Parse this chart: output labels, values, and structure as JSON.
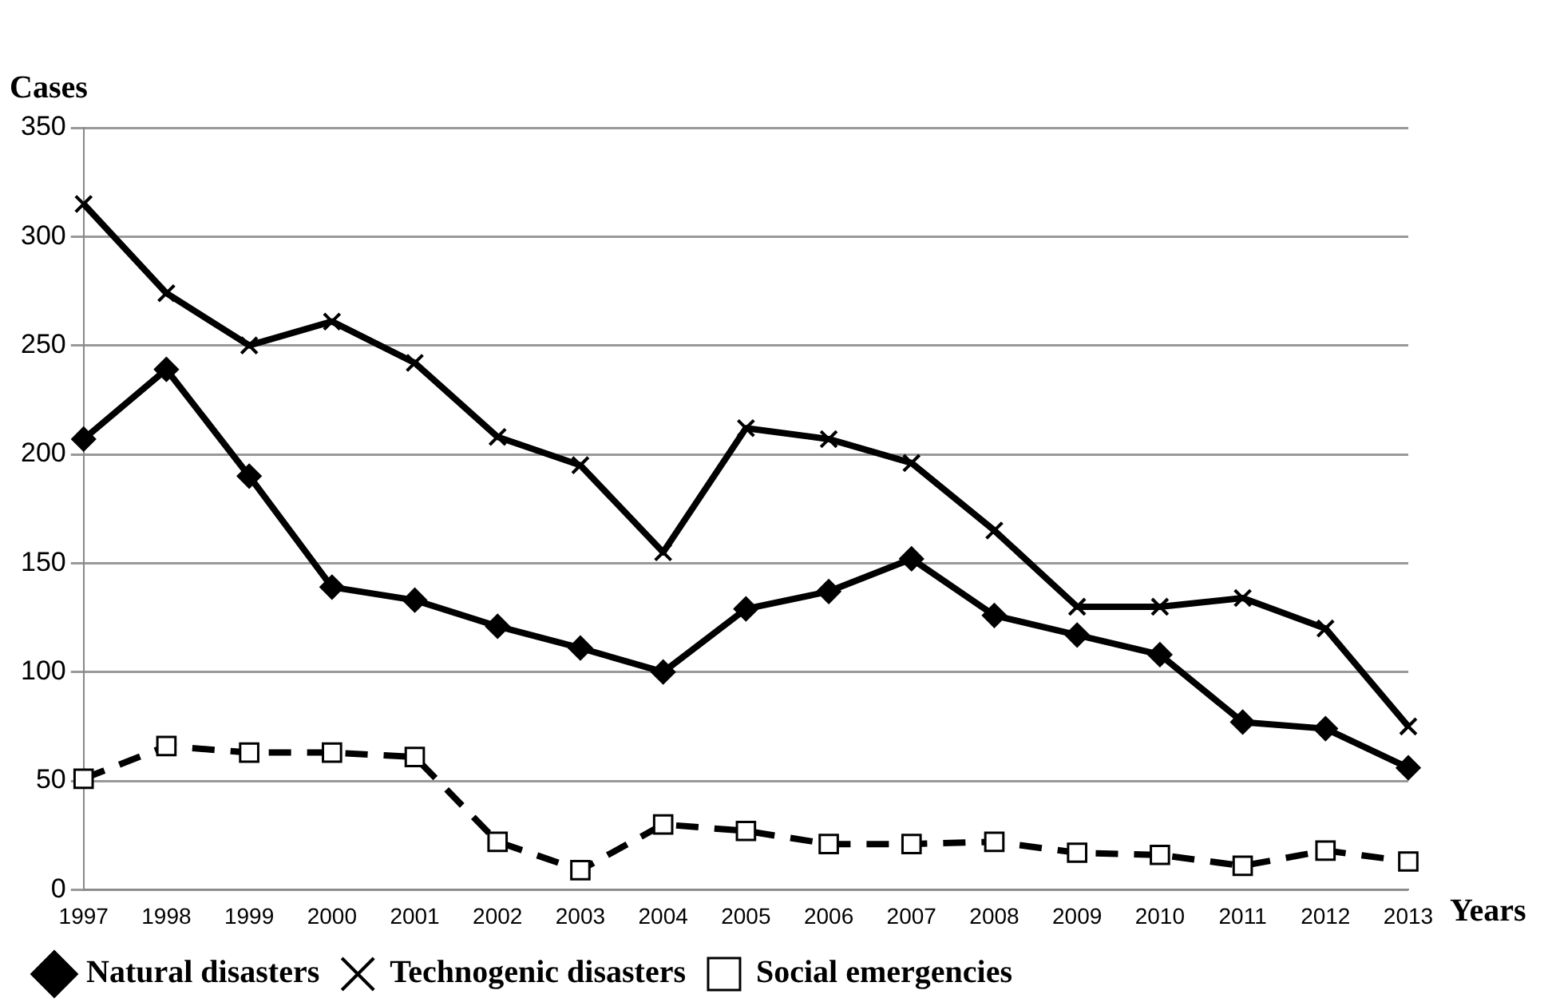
{
  "chart_data": {
    "type": "line",
    "ylabel": "Cases",
    "xlabel": "Years",
    "categories": [
      "1997",
      "1998",
      "1999",
      "2000",
      "2001",
      "2002",
      "2003",
      "2004",
      "2005",
      "2006",
      "2007",
      "2008",
      "2009",
      "2010",
      "2011",
      "2012",
      "2013"
    ],
    "series": [
      {
        "name": "Natural disasters",
        "color": "#000000",
        "marker": "diamond",
        "line_style": "solid",
        "values": [
          207,
          239,
          190,
          139,
          133,
          121,
          111,
          100,
          129,
          137,
          152,
          126,
          117,
          108,
          77,
          74,
          56
        ]
      },
      {
        "name": "Technogenic disasters",
        "color": "#000000",
        "marker": "cross",
        "line_style": "solid",
        "values": [
          315,
          274,
          250,
          261,
          242,
          208,
          195,
          155,
          212,
          207,
          196,
          165,
          130,
          130,
          134,
          120,
          75
        ]
      },
      {
        "name": "Social emergencies",
        "color": "#000000",
        "marker": "square",
        "line_style": "dashed",
        "values": [
          51,
          66,
          63,
          63,
          61,
          22,
          9,
          30,
          27,
          21,
          21,
          22,
          17,
          16,
          11,
          18,
          13
        ]
      }
    ],
    "ylim": [
      0,
      350
    ],
    "yticks": [
      0,
      50,
      100,
      150,
      200,
      250,
      300,
      350
    ],
    "grid": "y",
    "legend": "bottom"
  }
}
